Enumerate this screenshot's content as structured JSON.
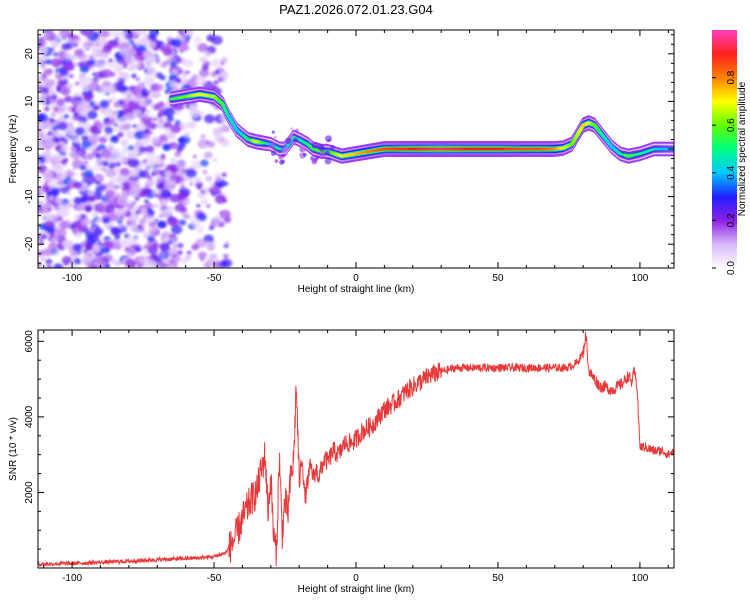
{
  "title": "PAZ1.2026.072.01.23.G04",
  "chart_data": [
    {
      "type": "heatmap",
      "xlabel": "Height of straight line (km)",
      "ylabel": "Frequency (Hz)",
      "xlim": [
        -112,
        112
      ],
      "ylim": [
        -25,
        25
      ],
      "xticks": [
        -100,
        -50,
        0,
        50,
        100
      ],
      "yticks": [
        -20,
        -10,
        0,
        10,
        20
      ],
      "colorbar": {
        "label": "Normalized spectral amplitude",
        "range": [
          0,
          1
        ],
        "ticks": [
          "0.0",
          "0.2",
          "0.4",
          "0.6",
          "0.8"
        ],
        "colors": [
          "#ffffff",
          "#d8b8f8",
          "#8a20e8",
          "#2020ff",
          "#00c8ff",
          "#00ff80",
          "#60ff00",
          "#ffff00",
          "#ff8000",
          "#ff2020",
          "#ff40c0"
        ]
      },
      "noise_region_x": [
        -112,
        -45
      ],
      "ridge": {
        "x": [
          -65,
          -60,
          -55,
          -50,
          -47,
          -45,
          -42,
          -38,
          -35,
          -30,
          -27,
          -25,
          -22,
          -20,
          -17,
          -15,
          -12,
          -10,
          -5,
          0,
          5,
          10,
          20,
          30,
          40,
          50,
          60,
          65,
          70,
          73,
          76,
          78,
          80,
          82,
          84,
          86,
          88,
          90,
          93,
          96,
          100,
          105,
          110,
          112
        ],
        "y": [
          10.5,
          11,
          11.5,
          11,
          9.5,
          7,
          4,
          2,
          1.5,
          1,
          0,
          0,
          2.5,
          2,
          1,
          0,
          -0.5,
          -0.5,
          -1.5,
          -1,
          -0.5,
          0,
          0,
          0,
          0,
          0,
          0,
          0,
          0,
          0.2,
          1,
          3,
          5,
          5.5,
          5,
          3.5,
          2,
          0.5,
          -1,
          -1.5,
          -1,
          0,
          0,
          0
        ],
        "amplitude": [
          0.55,
          0.6,
          0.7,
          0.65,
          0.55,
          0.45,
          0.4,
          0.5,
          0.7,
          0.4,
          0.5,
          0.4,
          0.5,
          0.45,
          0.5,
          0.55,
          0.6,
          0.55,
          0.7,
          0.75,
          0.8,
          0.85,
          0.9,
          0.95,
          0.9,
          0.9,
          0.85,
          0.85,
          0.8,
          0.7,
          0.6,
          0.65,
          0.75,
          0.7,
          0.6,
          0.5,
          0.45,
          0.4,
          0.45,
          0.6,
          0.5,
          0.45,
          0.4,
          0.4
        ]
      }
    },
    {
      "type": "line",
      "xlabel": "Height of straight line (km)",
      "ylabel": "SNR (10 * v/v)",
      "xlim": [
        -112,
        112
      ],
      "ylim": [
        0,
        6300
      ],
      "xticks": [
        -100,
        -50,
        0,
        50,
        100
      ],
      "yticks": [
        2000,
        4000,
        6000
      ],
      "color": "#e83a3a",
      "series": [
        {
          "x": [
            -112,
            -100,
            -90,
            -80,
            -70,
            -60,
            -55,
            -50,
            -46,
            -44,
            -42,
            -40,
            -37,
            -35,
            -33,
            -32,
            -31,
            -30,
            -29,
            -28,
            -27,
            -26,
            -25,
            -24,
            -23,
            -22,
            -21,
            -20,
            -19,
            -18,
            -17,
            -16,
            -15,
            -14,
            -13,
            -12,
            -11,
            -10,
            -8,
            -6,
            -4,
            -2,
            0,
            2,
            4,
            6,
            8,
            10,
            14,
            18,
            22,
            26,
            30,
            35,
            40,
            45,
            50,
            55,
            60,
            65,
            70,
            74,
            76,
            78,
            80,
            81,
            82,
            84,
            86,
            88,
            90,
            92,
            94,
            96,
            97,
            98,
            99,
            100,
            102,
            105,
            108,
            110,
            112
          ],
          "y": [
            100,
            120,
            150,
            180,
            220,
            250,
            270,
            300,
            400,
            600,
            900,
            1300,
            1800,
            2000,
            2700,
            3000,
            1500,
            2400,
            800,
            400,
            3000,
            900,
            1800,
            1400,
            2400,
            2800,
            4900,
            2200,
            3000,
            1800,
            2300,
            2700,
            2400,
            2600,
            2400,
            2700,
            2900,
            2800,
            3100,
            3000,
            3300,
            3300,
            3400,
            3600,
            3700,
            3800,
            4000,
            4200,
            4400,
            4700,
            4900,
            5100,
            5200,
            5300,
            5300,
            5300,
            5300,
            5300,
            5300,
            5300,
            5300,
            5300,
            5350,
            5450,
            5700,
            6200,
            5200,
            5000,
            4800,
            4800,
            4700,
            4800,
            4900,
            5100,
            4900,
            5200,
            4800,
            3200,
            3200,
            3100,
            3100,
            3000,
            3100
          ]
        }
      ]
    }
  ]
}
